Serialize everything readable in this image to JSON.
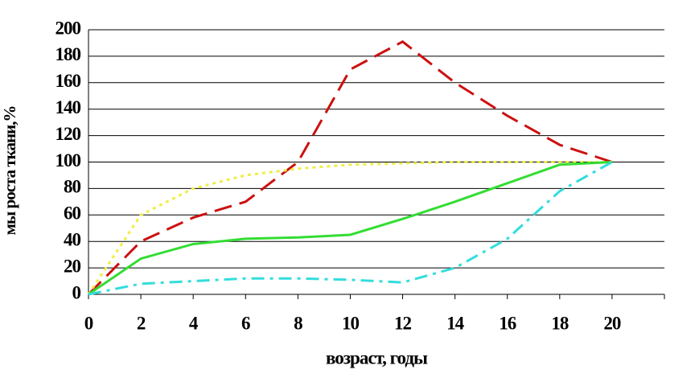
{
  "chart_data": {
    "type": "line",
    "x_label": "возраст, годы",
    "y_label": "мы роста ткани,%",
    "x": [
      0,
      2,
      4,
      6,
      8,
      10,
      12,
      14,
      16,
      18,
      20
    ],
    "series": [
      {
        "color": "#cc1111",
        "dash": "dashed",
        "values": [
          0,
          40,
          58,
          70,
          100,
          170,
          191,
          160,
          135,
          113,
          100
        ]
      },
      {
        "color": "#eeee44",
        "dash": "dotted",
        "values": [
          0,
          60,
          80,
          90,
          95,
          98,
          99,
          100,
          100,
          100,
          100
        ]
      },
      {
        "color": "#33dd33",
        "dash": "solid",
        "values": [
          0,
          27,
          38,
          42,
          43,
          45,
          57,
          70,
          84,
          98,
          100
        ]
      },
      {
        "color": "#33dddd",
        "dash": "dashdot",
        "values": [
          0,
          8,
          10,
          12,
          12,
          11,
          9,
          20,
          42,
          78,
          100
        ]
      }
    ],
    "xlim": [
      0,
      22
    ],
    "xticks": [
      0,
      2,
      4,
      6,
      8,
      10,
      12,
      14,
      16,
      18,
      20
    ],
    "ylim": [
      0,
      200
    ],
    "yticks": [
      0,
      20,
      40,
      60,
      80,
      100,
      120,
      140,
      160,
      180,
      200
    ],
    "grid": true
  }
}
